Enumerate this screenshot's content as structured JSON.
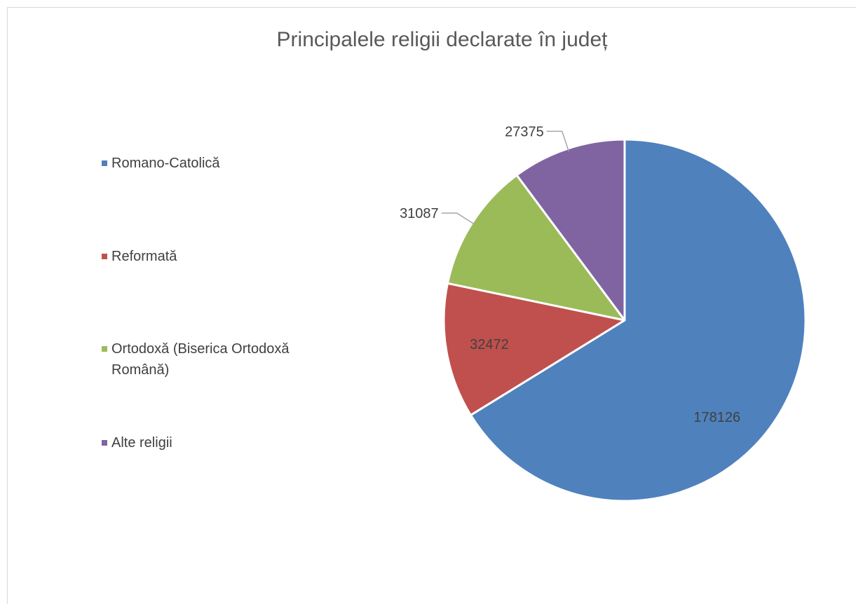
{
  "chart_data": {
    "type": "pie",
    "title": "Principalele religii declarate în județ",
    "categories": [
      "Romano-Catolică",
      "Reformată",
      "Ortodoxă (Biserica Ortodoxă Română)",
      "Alte religii"
    ],
    "values": [
      178126,
      32472,
      31087,
      27375
    ],
    "data_labels": [
      "178126",
      "32472",
      "31087",
      "27375"
    ],
    "colors": [
      "#4f81bd",
      "#c0504d",
      "#9bbb59",
      "#8064a2"
    ],
    "legend_position": "left",
    "start_angle": "12 o'clock",
    "direction": "clockwise"
  }
}
